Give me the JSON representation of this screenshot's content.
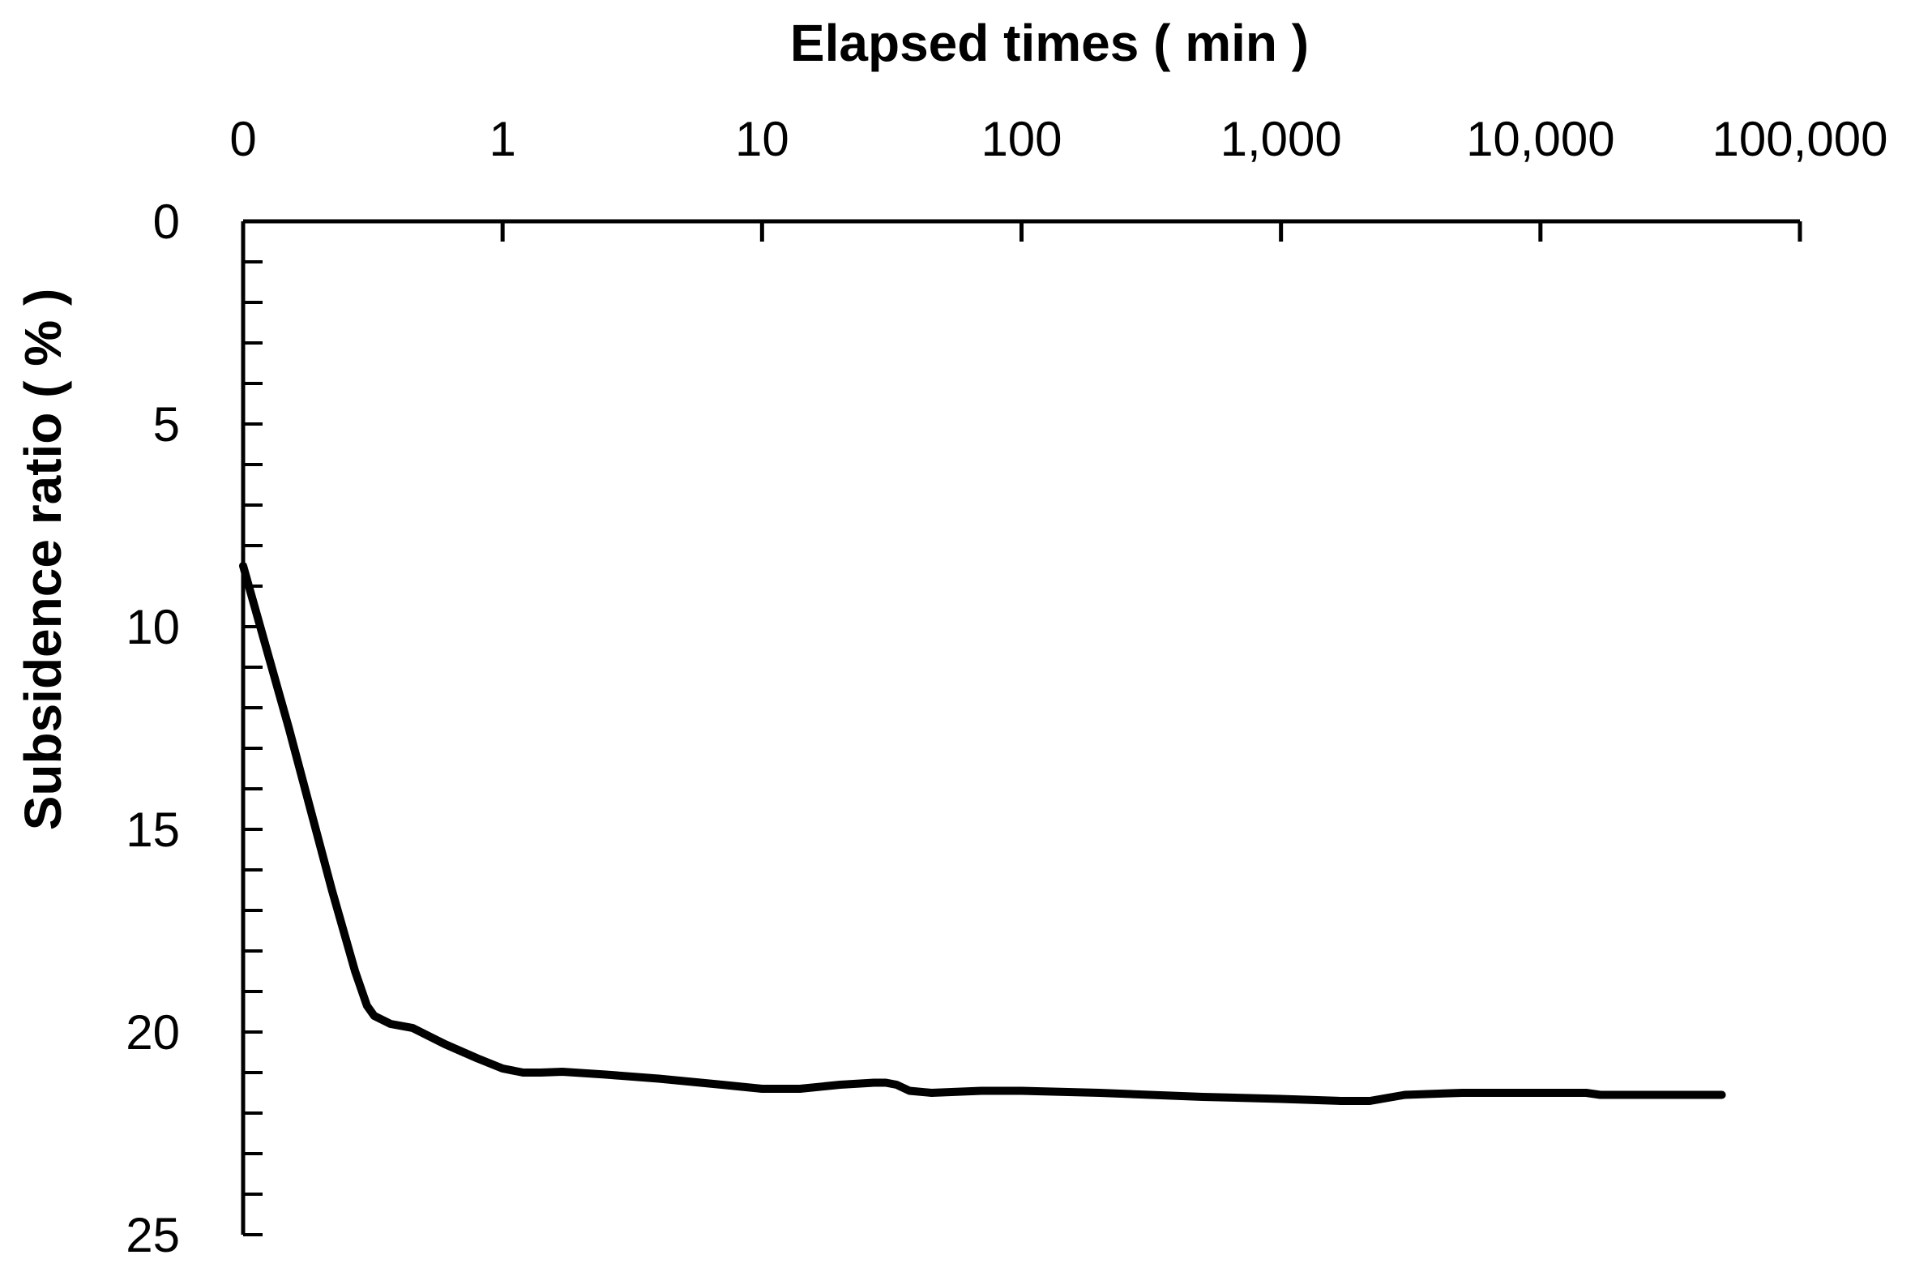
{
  "chart_data": {
    "type": "line",
    "title": "",
    "xlabel": "Elapsed times ( min )",
    "ylabel": "Subsidence ratio ( % )",
    "x_scale": "log",
    "x_axis_position": "top",
    "y_axis_inverted": true,
    "x_tick_labels": [
      "0",
      "1",
      "10",
      "100",
      "1,000",
      "10,000",
      "100,000"
    ],
    "x_tick_values": [
      0.1,
      1,
      10,
      100,
      1000,
      10000,
      100000
    ],
    "xlim": [
      0.1,
      100000
    ],
    "y_tick_labels": [
      "0",
      "5",
      "10",
      "15",
      "20",
      "25"
    ],
    "y_tick_values": [
      0,
      5,
      10,
      15,
      20,
      25
    ],
    "ylim": [
      0,
      25
    ],
    "grid": false,
    "legend": "none",
    "line_color": "#000000",
    "series": [
      {
        "x": [
          0.1,
          0.15,
          0.22,
          0.27,
          0.3,
          0.32,
          0.37,
          0.45,
          0.6,
          0.8,
          1.0,
          1.2,
          1.4,
          1.7,
          2.5,
          4,
          7,
          10,
          14,
          20,
          27,
          30,
          33,
          37,
          45,
          70,
          100,
          200,
          500,
          1000,
          1700,
          2200,
          3000,
          5000,
          10000,
          15000,
          17000,
          50000
        ],
        "y": [
          8.5,
          12.5,
          16.5,
          18.5,
          19.35,
          19.6,
          19.8,
          19.9,
          20.3,
          20.65,
          20.9,
          21.0,
          21.0,
          20.98,
          21.05,
          21.15,
          21.3,
          21.4,
          21.4,
          21.3,
          21.25,
          21.25,
          21.3,
          21.45,
          21.5,
          21.45,
          21.45,
          21.5,
          21.6,
          21.65,
          21.7,
          21.7,
          21.55,
          21.5,
          21.5,
          21.5,
          21.55,
          21.55
        ]
      }
    ]
  }
}
